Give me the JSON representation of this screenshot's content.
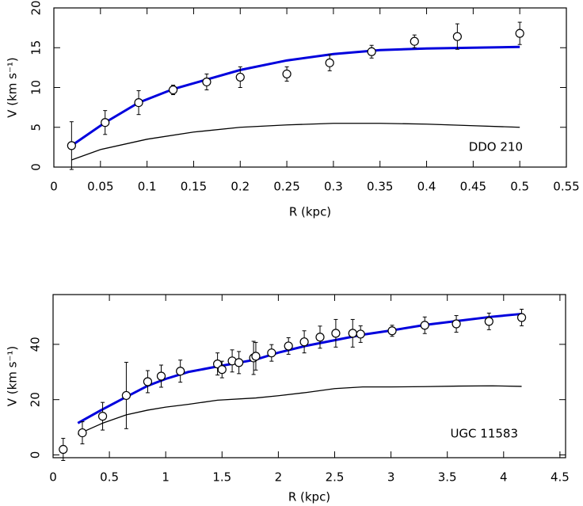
{
  "chart_data": [
    {
      "type": "scatter",
      "annotation": "DDO 210",
      "xlabel": "R (kpc)",
      "ylabel": "V (km s⁻¹)",
      "xlim": [
        0,
        0.55
      ],
      "ylim": [
        0,
        20
      ],
      "xticks": [
        0,
        0.05,
        0.1,
        0.15,
        0.2,
        0.25,
        0.3,
        0.35,
        0.4,
        0.45,
        0.5,
        0.55
      ],
      "yticks": [
        0,
        5,
        10,
        15,
        20
      ],
      "points": {
        "color": "#000000",
        "x": [
          0.019,
          0.055,
          0.091,
          0.128,
          0.164,
          0.2,
          0.25,
          0.296,
          0.341,
          0.387,
          0.433,
          0.5
        ],
        "values": [
          2.7,
          5.6,
          8.1,
          9.7,
          10.7,
          11.3,
          11.7,
          13.1,
          14.5,
          15.8,
          16.4,
          16.8
        ],
        "errors": [
          3,
          1.5,
          1.5,
          0.6,
          1,
          1.3,
          0.9,
          1,
          0.8,
          0.8,
          1.6,
          1.4
        ]
      },
      "lines": [
        {
          "color": "#0000dd",
          "width": 3,
          "x": [
            0.019,
            0.055,
            0.091,
            0.128,
            0.164,
            0.2,
            0.25,
            0.3,
            0.35,
            0.4,
            0.45,
            0.5
          ],
          "values": [
            2.7,
            5.6,
            8.1,
            9.8,
            11,
            12.2,
            13.4,
            14.2,
            14.7,
            14.9,
            15.0,
            15.1
          ]
        },
        {
          "color": "#000000",
          "width": 1.3,
          "x": [
            0.019,
            0.05,
            0.1,
            0.15,
            0.2,
            0.25,
            0.3,
            0.35,
            0.4,
            0.45,
            0.5
          ],
          "values": [
            0.9,
            2.2,
            3.5,
            4.4,
            5.0,
            5.3,
            5.5,
            5.5,
            5.4,
            5.2,
            5.0
          ]
        }
      ]
    },
    {
      "type": "scatter",
      "annotation": "UGC 11583",
      "xlabel": "R (kpc)",
      "ylabel": "V (km s⁻¹)",
      "xlim": [
        0,
        4.55
      ],
      "ylim": [
        -1,
        58
      ],
      "xticks": [
        0,
        0.5,
        1,
        1.5,
        2,
        2.5,
        3,
        3.5,
        4,
        4.5
      ],
      "yticks": [
        0,
        20,
        40
      ],
      "points": {
        "color": "#000000",
        "x": [
          0.09,
          0.26,
          0.44,
          0.65,
          0.84,
          0.96,
          1.13,
          1.46,
          1.5,
          1.59,
          1.65,
          1.78,
          1.8,
          1.94,
          2.09,
          2.23,
          2.37,
          2.51,
          2.66,
          2.73,
          3.01,
          3.3,
          3.58,
          3.87,
          4.16
        ],
        "values": [
          2,
          8,
          14,
          21.5,
          26.5,
          28.5,
          30.3,
          32.9,
          30.9,
          34,
          33.4,
          35.1,
          35.7,
          36.9,
          39.4,
          40.9,
          42.6,
          44,
          44,
          43.7,
          44.9,
          46.9,
          47.4,
          48.3,
          49.7
        ],
        "errors": [
          4,
          4,
          5,
          12,
          4,
          4,
          4,
          4,
          3,
          4,
          4,
          6,
          5,
          3,
          3,
          4,
          4,
          5,
          5,
          3,
          2,
          3,
          3,
          3,
          3
        ]
      },
      "lines": [
        {
          "color": "#0000dd",
          "width": 3,
          "x": [
            0.22,
            0.44,
            0.65,
            0.84,
            1.0,
            1.2,
            1.46,
            1.6,
            1.8,
            2.0,
            2.25,
            2.5,
            2.75,
            3.0,
            3.3,
            3.6,
            3.9,
            4.16
          ],
          "values": [
            11.5,
            16.5,
            21,
            25,
            27.5,
            30,
            32,
            33,
            34.5,
            37,
            39.5,
            41.5,
            43.5,
            45,
            47,
            48.5,
            50,
            51
          ]
        },
        {
          "color": "#000000",
          "width": 1.3,
          "x": [
            0.22,
            0.44,
            0.65,
            0.84,
            1.0,
            1.2,
            1.46,
            1.8,
            2.0,
            2.25,
            2.5,
            2.75,
            3.0,
            3.3,
            3.6,
            3.9,
            4.16
          ],
          "values": [
            7.5,
            11.5,
            14.5,
            16.2,
            17.3,
            18.3,
            19.8,
            20.6,
            21.4,
            22.6,
            24,
            24.6,
            24.6,
            24.7,
            24.9,
            25,
            24.8
          ]
        }
      ]
    }
  ]
}
